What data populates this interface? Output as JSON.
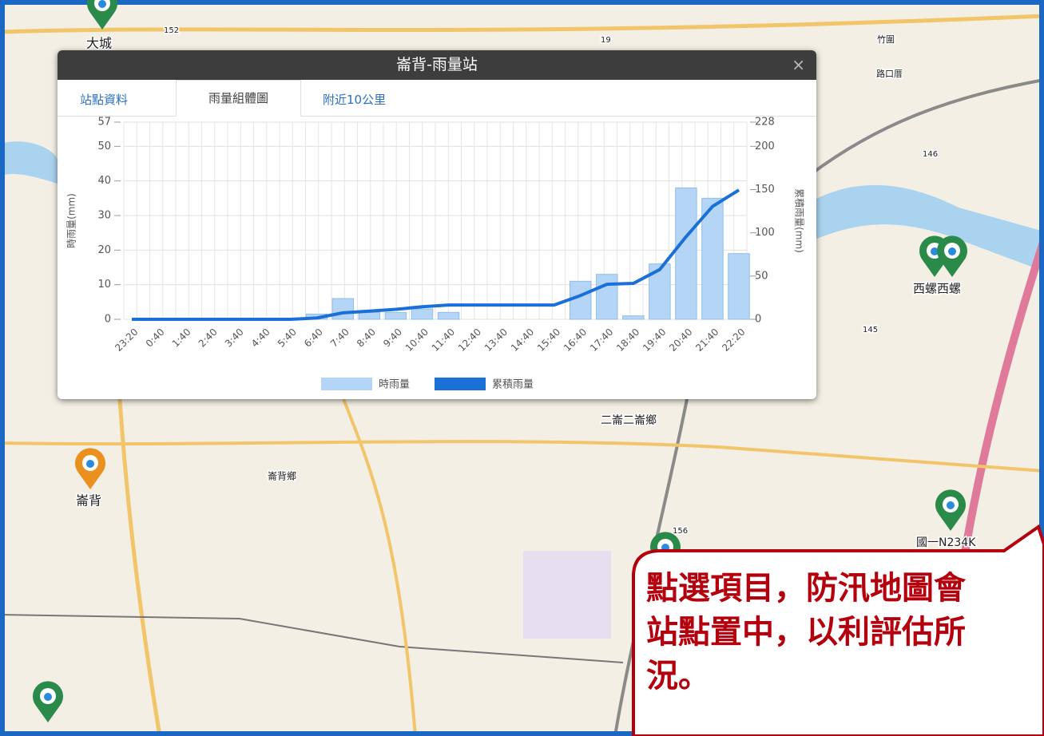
{
  "map": {
    "labels": [
      "大城",
      "崙背",
      "崙背鄉",
      "二崙二崙鄉",
      "西螺西螺",
      "國一N234K",
      "竹圍",
      "路口厝",
      "152",
      "19",
      "156",
      "145",
      "146"
    ]
  },
  "popup": {
    "title": "崙背-雨量站",
    "close": "×",
    "tabs": [
      "站點資料",
      "雨量組體圖",
      "附近10公里"
    ]
  },
  "chart_data": {
    "type": "bar-line",
    "y_label": "時雨量(mm)",
    "y2_label": "累積雨量(mm)",
    "categories": [
      "23:20",
      "0:40",
      "1:40",
      "2:40",
      "3:40",
      "4:40",
      "5:40",
      "6:40",
      "7:40",
      "8:40",
      "9:40",
      "10:40",
      "11:40",
      "12:40",
      "13:40",
      "14:40",
      "15:40",
      "16:40",
      "17:40",
      "18:40",
      "19:40",
      "20:40",
      "21:40",
      "22:20"
    ],
    "series": [
      {
        "name": "時雨量",
        "type": "bar",
        "color": "#b5d5f7",
        "values": [
          0,
          0,
          0,
          0,
          0,
          0,
          0,
          1.5,
          6,
          2,
          2,
          3,
          2,
          0,
          0,
          0,
          0,
          11,
          13,
          1,
          16,
          38,
          35,
          19
        ]
      },
      {
        "name": "累積雨量",
        "type": "line",
        "axis": "y2",
        "color": "#1a70d8",
        "values": [
          0,
          0,
          0,
          0,
          0,
          0,
          0,
          1.5,
          7.5,
          9.5,
          11.5,
          14.5,
          16.5,
          16.5,
          16.5,
          16.5,
          16.5,
          27.5,
          40.5,
          41.5,
          57.5,
          95.5,
          130.5,
          149.5
        ]
      }
    ],
    "ylim": [
      0,
      57
    ],
    "yticks": [
      0,
      10,
      20,
      30,
      40,
      50,
      57
    ],
    "y2lim": [
      0,
      228
    ],
    "y2ticks": [
      0,
      50,
      100,
      150,
      200,
      228
    ],
    "grid": true
  },
  "callout": {
    "lines": [
      "點選項目，防汛地圖會",
      "站點置中，以利評估所",
      "況。"
    ]
  }
}
